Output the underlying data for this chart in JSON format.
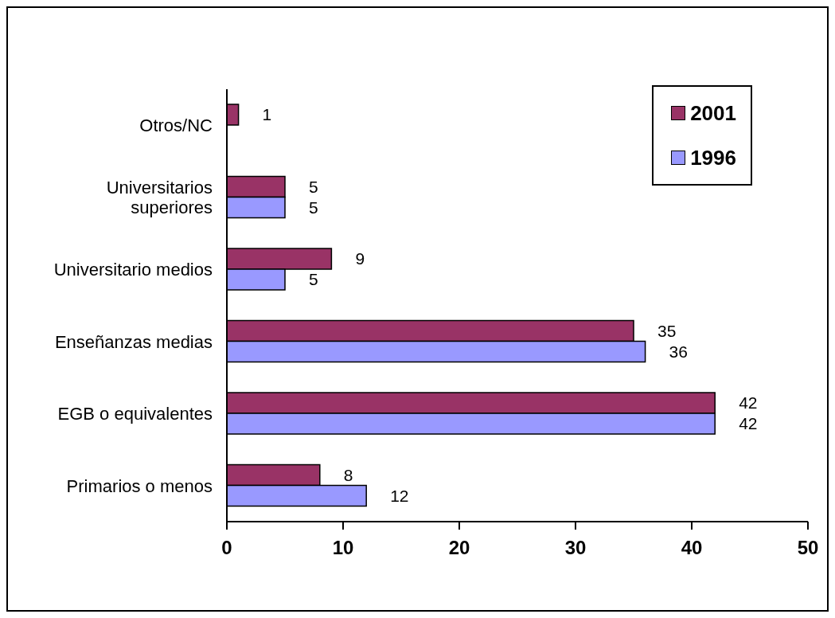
{
  "chart_data": {
    "type": "bar",
    "orientation": "horizontal",
    "categories": [
      "Otros/NC",
      "Universitarios superiores",
      "Universitario medios",
      "Enseñanzas medias",
      "EGB o equivalentes",
      "Primarios o menos"
    ],
    "series": [
      {
        "name": "2001",
        "color": "#993366",
        "values": [
          1,
          5,
          9,
          35,
          42,
          8
        ]
      },
      {
        "name": "1996",
        "color": "#9999ff",
        "values": [
          null,
          5,
          5,
          36,
          42,
          12
        ]
      }
    ],
    "xlim": [
      0,
      50
    ],
    "xticks": [
      0,
      10,
      20,
      30,
      40,
      50
    ],
    "data_labels": true,
    "legend": "top right",
    "grid": false
  }
}
